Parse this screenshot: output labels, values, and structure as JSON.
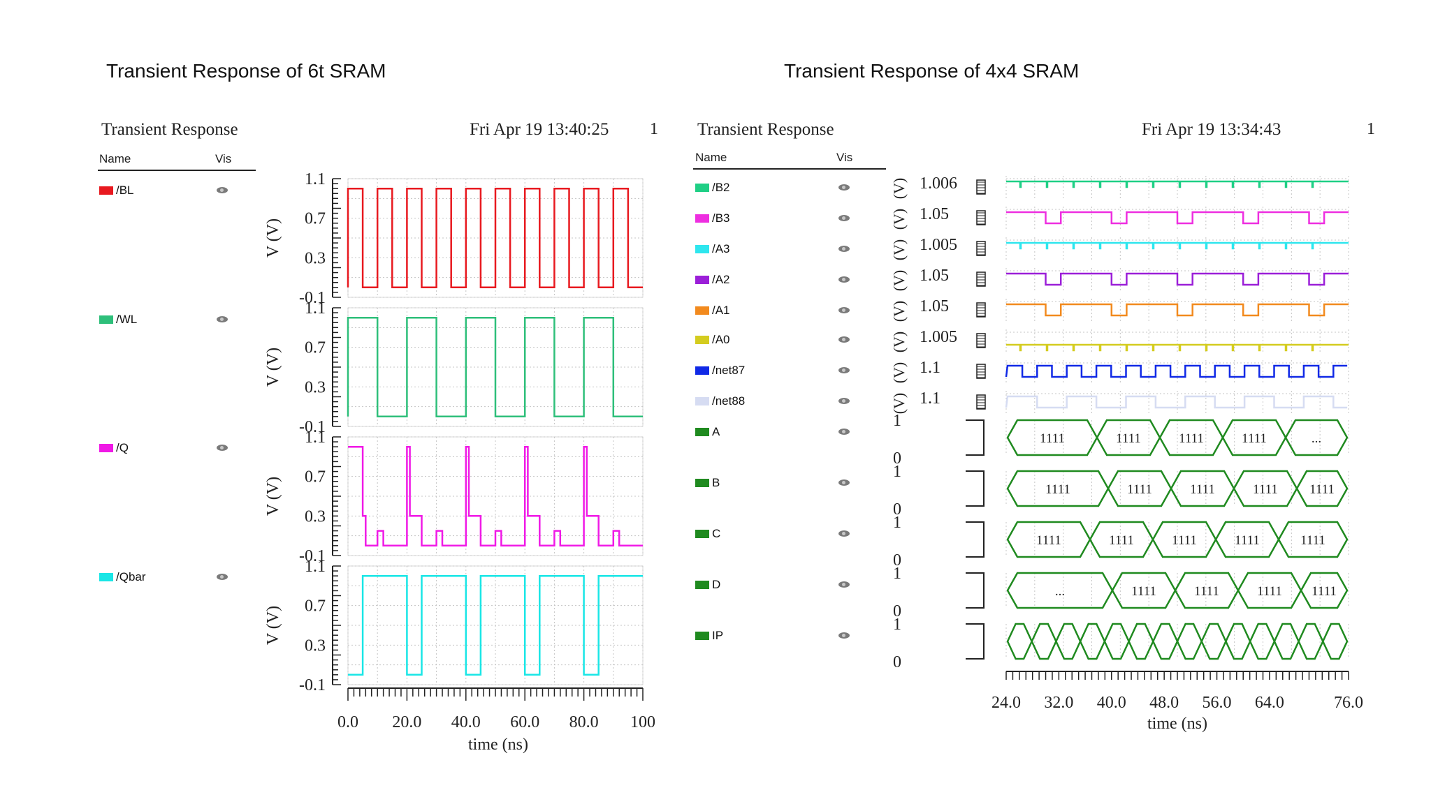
{
  "slide": {
    "left_title": "Transient Response of 6t SRAM",
    "right_title": "Transient Response of 4x4 SRAM"
  },
  "left_panel": {
    "header": "Transient Response",
    "date": "Fri Apr 19 13:40:25",
    "page": "1",
    "col_name": "Name",
    "col_vis": "Vis",
    "legend": [
      {
        "label": "/BL",
        "color": "#e8191f"
      },
      {
        "label": "/WL",
        "color": "#2ebf7a"
      },
      {
        "label": "/Q",
        "color": "#f019e6"
      },
      {
        "label": "/Qbar",
        "color": "#19e6e6"
      }
    ]
  },
  "right_panel": {
    "header": "Transient Response",
    "date": "Fri Apr 19 13:34:43",
    "page": "1",
    "col_name": "Name",
    "col_vis": "Vis",
    "legend": [
      {
        "label": "/B2",
        "color": "#1fcf85"
      },
      {
        "label": "/B3",
        "color": "#ee2ee0"
      },
      {
        "label": "/A3",
        "color": "#2ee6ee"
      },
      {
        "label": "/A2",
        "color": "#9b1fd8"
      },
      {
        "label": "/A1",
        "color": "#f28a1e"
      },
      {
        "label": "/A0",
        "color": "#d4cc1f"
      },
      {
        "label": "/net87",
        "color": "#1029e6"
      },
      {
        "label": "/net88",
        "color": "#d6dcf2"
      },
      {
        "label": "A",
        "color": "#1f8a1f"
      },
      {
        "label": "B",
        "color": "#1f8a1f"
      },
      {
        "label": "C",
        "color": "#1f8a1f"
      },
      {
        "label": "D",
        "color": "#1f8a1f"
      },
      {
        "label": "IP",
        "color": "#1f8a1f"
      }
    ]
  },
  "chart_data": [
    {
      "type": "line",
      "title": "Transient Response of 6t SRAM",
      "xlabel": "time (ns)",
      "ylabel": "V (V)",
      "xlim": [
        0,
        100
      ],
      "ylim": [
        -0.1,
        1.1
      ],
      "x_ticks": [
        "0.0",
        "20.0",
        "40.0",
        "60.0",
        "80.0",
        "100"
      ],
      "y_ticks": [
        "1.1",
        "0.7",
        "0.3",
        "-0.1"
      ],
      "grid": true,
      "series": [
        {
          "name": "/BL",
          "color": "#e8191f",
          "x": [
            0,
            0,
            5,
            5,
            10,
            10,
            15,
            15,
            20,
            20,
            25,
            25,
            30,
            30,
            35,
            35,
            40,
            40,
            45,
            45,
            50,
            50,
            55,
            55,
            60,
            60,
            65,
            65,
            70,
            70,
            75,
            75,
            80,
            80,
            85,
            85,
            90,
            90,
            95,
            95,
            100
          ],
          "y": [
            0,
            1,
            1,
            0,
            0,
            1,
            1,
            0,
            0,
            1,
            1,
            0,
            0,
            1,
            1,
            0,
            0,
            1,
            1,
            0,
            0,
            1,
            1,
            0,
            0,
            1,
            1,
            0,
            0,
            1,
            1,
            0,
            0,
            1,
            1,
            0,
            0,
            1,
            1,
            0,
            0
          ]
        },
        {
          "name": "/WL",
          "color": "#2ebf7a",
          "x": [
            0,
            0,
            10,
            10,
            20,
            20,
            30,
            30,
            40,
            40,
            50,
            50,
            60,
            60,
            70,
            70,
            80,
            80,
            90,
            90,
            100
          ],
          "y": [
            0,
            1,
            1,
            0,
            0,
            1,
            1,
            0,
            0,
            1,
            1,
            0,
            0,
            1,
            1,
            0,
            0,
            1,
            1,
            0,
            0
          ]
        },
        {
          "name": "/Q",
          "color": "#f019e6",
          "x": [
            0,
            5,
            5,
            6,
            6,
            10,
            10,
            12,
            12,
            15,
            15,
            20,
            20,
            21,
            21,
            25,
            25,
            30,
            30,
            32,
            32,
            35,
            35,
            40,
            40,
            41,
            41,
            45,
            45,
            50,
            50,
            52,
            52,
            55,
            55,
            60,
            60,
            61,
            61,
            65,
            65,
            70,
            70,
            72,
            72,
            75,
            75,
            80,
            80,
            81,
            81,
            85,
            85,
            90,
            90,
            92,
            92,
            95,
            95,
            100
          ],
          "y": [
            1,
            1,
            0.3,
            0.3,
            0,
            0,
            0.15,
            0.15,
            0,
            0,
            0,
            0,
            1,
            1,
            0.3,
            0.3,
            0,
            0,
            0.15,
            0.15,
            0,
            0,
            0,
            0,
            1,
            1,
            0.3,
            0.3,
            0,
            0,
            0.15,
            0.15,
            0,
            0,
            0,
            0,
            1,
            1,
            0.3,
            0.3,
            0,
            0,
            0.15,
            0.15,
            0,
            0,
            0,
            0,
            1,
            1,
            0.3,
            0.3,
            0,
            0,
            0.15,
            0.15,
            0,
            0,
            0,
            0
          ]
        },
        {
          "name": "/Qbar",
          "color": "#19e6e6",
          "x": [
            0,
            5,
            5,
            10,
            10,
            20,
            20,
            25,
            25,
            30,
            30,
            40,
            40,
            45,
            45,
            50,
            50,
            60,
            60,
            65,
            65,
            70,
            70,
            80,
            80,
            85,
            85,
            90,
            90,
            100
          ],
          "y": [
            0,
            0,
            1,
            1,
            1,
            1,
            0,
            0,
            1,
            1,
            1,
            1,
            0,
            0,
            1,
            1,
            1,
            1,
            0,
            0,
            1,
            1,
            1,
            1,
            0,
            0,
            1,
            1,
            1,
            1
          ]
        }
      ]
    },
    {
      "type": "line",
      "title": "Transient Response of 4x4 SRAM",
      "xlabel": "time (ns)",
      "ylabel": "(V)",
      "xlim": [
        24,
        76
      ],
      "x_ticks": [
        "24.0",
        "32.0",
        "40.0",
        "48.0",
        "56.0",
        "64.0",
        "76.0"
      ],
      "grid": true,
      "analog_rows": [
        {
          "name": "/B2",
          "scale_label": "1.006",
          "unit": "(V)"
        },
        {
          "name": "/B3",
          "scale_label": "1.05",
          "unit": "(V)"
        },
        {
          "name": "/A3",
          "scale_label": "1.005",
          "unit": "(V)"
        },
        {
          "name": "/A2",
          "scale_label": "1.05",
          "unit": "(V)"
        },
        {
          "name": "/A1",
          "scale_label": "1.05",
          "unit": "(V)"
        },
        {
          "name": "/A0",
          "scale_label": "1.005",
          "unit": "(V)"
        },
        {
          "name": "/net87",
          "scale_label": "1.1",
          "unit": "(V)"
        },
        {
          "name": "/net88",
          "scale_label": "1.1",
          "unit": "(V)"
        }
      ],
      "bus_rows": [
        {
          "name": "A",
          "high": "1",
          "low": "0",
          "values": [
            "1111",
            "1111",
            "1111",
            "1111",
            "..."
          ]
        },
        {
          "name": "B",
          "high": "1",
          "low": "0",
          "values": [
            "1111",
            "1111",
            "1111",
            "1111",
            "1111"
          ]
        },
        {
          "name": "C",
          "high": "1",
          "low": "0",
          "values": [
            "1111",
            "1111",
            "1111",
            "1111",
            "1111"
          ]
        },
        {
          "name": "D",
          "high": "1",
          "low": "0",
          "values": [
            "...",
            "1111",
            "1111",
            "1111",
            "1111"
          ]
        },
        {
          "name": "IP",
          "high": "1",
          "low": "0",
          "values": []
        }
      ]
    }
  ]
}
